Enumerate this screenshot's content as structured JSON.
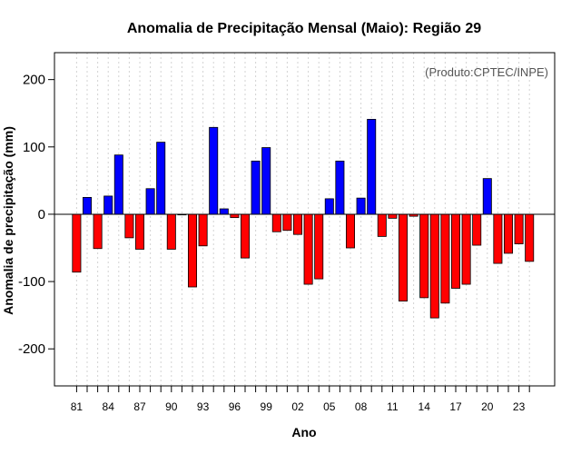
{
  "chart_data": {
    "type": "bar",
    "title": "Anomalia de Precipitação Mensal (Maio): Região 29",
    "xlabel": "Ano",
    "ylabel": "Anomalia de precipitação (mm)",
    "annotation": "(Produto:CPTEC/INPE)",
    "ylim": [
      -255,
      240
    ],
    "yticks": [
      -200,
      -100,
      0,
      100,
      200
    ],
    "ytick_labels": [
      "-200",
      "-100",
      "0",
      "100",
      "200"
    ],
    "years": [
      1981,
      1982,
      1983,
      1984,
      1985,
      1986,
      1987,
      1988,
      1989,
      1990,
      1991,
      1992,
      1993,
      1994,
      1995,
      1996,
      1997,
      1998,
      1999,
      2000,
      2001,
      2002,
      2003,
      2004,
      2005,
      2006,
      2007,
      2008,
      2009,
      2010,
      2011,
      2012,
      2013,
      2014,
      2015,
      2016,
      2017,
      2018,
      2019,
      2020,
      2021,
      2022,
      2023,
      2024
    ],
    "values": [
      -86,
      25,
      -51,
      27,
      88,
      -35,
      -52,
      38,
      107,
      -52,
      -1,
      -108,
      -47,
      129,
      8,
      -5,
      -65,
      79,
      99,
      -26,
      -24,
      -30,
      -104,
      -96,
      23,
      79,
      -50,
      24,
      141,
      -33,
      -6,
      -129,
      -3,
      -124,
      -154,
      -132,
      -110,
      -104,
      -46,
      53,
      -73,
      -58,
      -44,
      -70
    ],
    "xtick_labels": [
      "81",
      "84",
      "87",
      "90",
      "93",
      "96",
      "99",
      "02",
      "05",
      "08",
      "11",
      "14",
      "17",
      "20",
      "23"
    ],
    "xtick_years": [
      1981,
      1984,
      1987,
      1990,
      1993,
      1996,
      1999,
      2002,
      2005,
      2008,
      2011,
      2014,
      2017,
      2020,
      2023
    ],
    "colors": {
      "positive": "#0000ff",
      "negative": "#ff0000",
      "grid": "#d3d3d3"
    },
    "grid": true
  }
}
